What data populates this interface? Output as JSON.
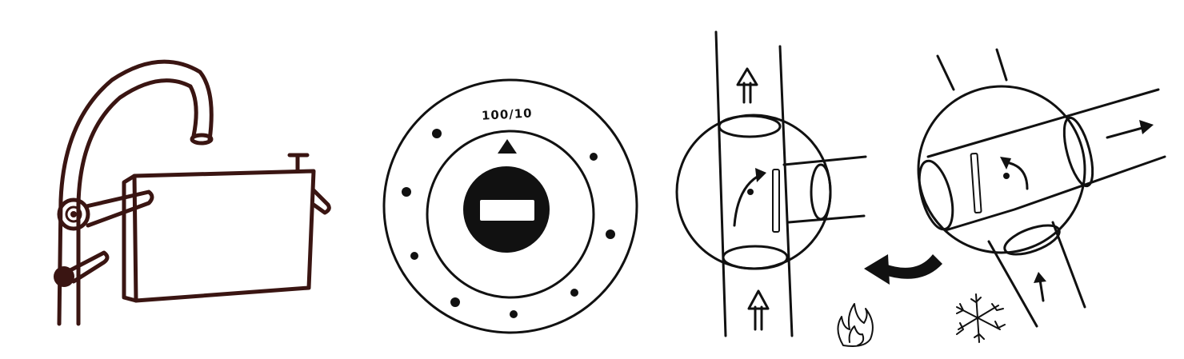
{
  "colors": {
    "ink": "#111111",
    "faucet_ink": "#3a1512",
    "background": "#ffffff"
  },
  "icons": [
    "faucet-with-tank-sketch",
    "round-dial-knob",
    "valve-vertical-flow",
    "valve-diverted-flow",
    "flame-icon",
    "snowflake-icon",
    "curved-arrow-icon"
  ],
  "dial": {
    "label": "100/10"
  }
}
